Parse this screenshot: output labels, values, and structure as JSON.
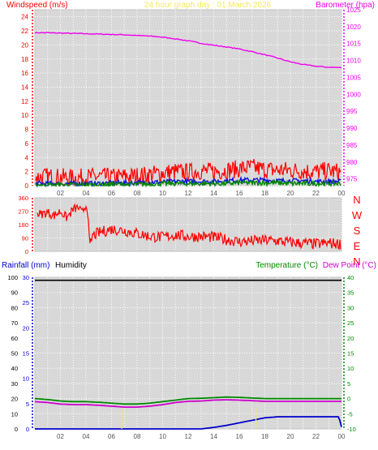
{
  "title": "24 hour graph day : 01 March 2026",
  "colors": {
    "title": "#f5e85a",
    "wind": "#ff0000",
    "wind_avg": "#1010dd",
    "wind_lull": "#008800",
    "barometer": "#ee00ee",
    "direction": "#ff0000",
    "rain": "#0000cc",
    "humidity": "#000000",
    "temperature": "#008800",
    "dewpoint": "#cc00cc",
    "rain_markers": "#f5e85a",
    "grid": "#ffffff",
    "plot_bg": "#d8d8d8"
  },
  "chart_data": [
    {
      "type": "line",
      "id": "wind_baro",
      "y_left_label": "Windspeed (m/s)",
      "y_right_label": "Barometer (hpa)",
      "x_ticks": [
        "02",
        "04",
        "06",
        "08",
        "10",
        "12",
        "14",
        "16",
        "18",
        "20",
        "22",
        "00"
      ],
      "y_left_ticks": [
        "24",
        "22",
        "20",
        "18",
        "16",
        "14",
        "12",
        "10",
        "8",
        "6",
        "4",
        "2",
        "0"
      ],
      "y_right_ticks": [
        "1025",
        "1020",
        "1015",
        "1010",
        "1005",
        "1000",
        "995",
        "990",
        "985",
        "980",
        "975"
      ],
      "ylim_left": [
        0,
        25
      ],
      "ylim_right": [
        973,
        1025
      ],
      "grid": true,
      "series": [
        {
          "axis": "right",
          "color_key": "barometer",
          "x": [
            0,
            1,
            2,
            3,
            4,
            5,
            6,
            7,
            8,
            9,
            10,
            11,
            12,
            13,
            14,
            15,
            16,
            17,
            18,
            19,
            20,
            21,
            22,
            23,
            24
          ],
          "values": [
            1018.2,
            1018.2,
            1018.1,
            1018.0,
            1017.9,
            1017.8,
            1017.7,
            1017.6,
            1017.4,
            1017.2,
            1016.9,
            1016.4,
            1015.8,
            1015.1,
            1014.5,
            1014.0,
            1013.4,
            1012.6,
            1011.7,
            1010.7,
            1009.6,
            1008.8,
            1008.3,
            1008.0,
            1007.9
          ]
        },
        {
          "axis": "left",
          "color_key": "wind",
          "kind": "noise",
          "x": [
            0,
            1,
            2,
            3,
            4,
            5,
            6,
            7,
            8,
            9,
            10,
            11,
            12,
            13,
            14,
            15,
            16,
            17,
            18,
            19,
            20,
            21,
            22,
            23,
            24
          ],
          "values": [
            1.2,
            1.3,
            1.2,
            1.1,
            1.2,
            1.3,
            1.2,
            1.3,
            1.4,
            1.6,
            1.8,
            2.0,
            1.9,
            2.1,
            2.0,
            2.2,
            2.4,
            2.6,
            2.3,
            2.2,
            2.2,
            2.1,
            2.0,
            2.1,
            1.9
          ],
          "amp": 1.3
        },
        {
          "axis": "left",
          "color_key": "wind_avg",
          "kind": "noise",
          "x": [
            0,
            1,
            2,
            3,
            4,
            5,
            6,
            7,
            8,
            9,
            10,
            11,
            12,
            13,
            14,
            15,
            16,
            17,
            18,
            19,
            20,
            21,
            22,
            23,
            24
          ],
          "values": [
            0.3,
            0.3,
            0.3,
            0.3,
            0.3,
            0.3,
            0.4,
            0.4,
            0.4,
            0.5,
            0.5,
            0.6,
            0.6,
            0.6,
            0.6,
            0.7,
            0.8,
            0.8,
            0.8,
            0.7,
            0.7,
            0.7,
            0.6,
            0.6,
            0.6
          ],
          "amp": 0.35
        },
        {
          "axis": "left",
          "color_key": "wind_lull",
          "kind": "noise",
          "x": [
            0,
            1,
            2,
            3,
            4,
            5,
            6,
            7,
            8,
            9,
            10,
            11,
            12,
            13,
            14,
            15,
            16,
            17,
            18,
            19,
            20,
            21,
            22,
            23,
            24
          ],
          "values": [
            0.1,
            0.1,
            0.1,
            0.1,
            0.1,
            0.1,
            0.2,
            0.2,
            0.2,
            0.2,
            0.3,
            0.3,
            0.3,
            0.3,
            0.3,
            0.3,
            0.4,
            0.4,
            0.4,
            0.4,
            0.3,
            0.3,
            0.3,
            0.3,
            0.3
          ],
          "amp": 0.35
        }
      ]
    },
    {
      "type": "line",
      "id": "direction",
      "y_left_ticks": [
        "360",
        "270",
        "180",
        "90",
        "0"
      ],
      "right_labels": [
        "N",
        "W",
        "S",
        "E",
        "N"
      ],
      "ylim_left": [
        0,
        360
      ],
      "grid": true,
      "series": [
        {
          "color_key": "direction",
          "kind": "noise",
          "x": [
            0,
            0.5,
            1,
            1.5,
            2,
            2.5,
            3,
            3.4,
            3.7,
            3.9,
            4.1,
            4.3,
            4.5,
            5,
            6,
            7,
            8,
            9,
            10,
            11,
            12,
            13,
            14,
            15,
            16,
            17,
            18,
            19,
            20,
            21,
            22,
            23,
            24
          ],
          "values": [
            255,
            250,
            262,
            240,
            270,
            225,
            282,
            295,
            255,
            300,
            310,
            20,
            105,
            125,
            150,
            140,
            120,
            100,
            95,
            110,
            100,
            100,
            95,
            80,
            65,
            70,
            75,
            70,
            60,
            55,
            50,
            55,
            50
          ],
          "amp": 38
        }
      ]
    },
    {
      "type": "line",
      "id": "rain_temp",
      "y_left_label": "Rainfall (mm)",
      "y_left2_label": "Humidity",
      "y_right_label": "Temperature (°C)",
      "y_right2_label": "Dew Point (°C)",
      "x_ticks": [
        "02",
        "04",
        "06",
        "08",
        "10",
        "12",
        "14",
        "16",
        "18",
        "20",
        "22",
        "00"
      ],
      "y_humidity_ticks": [
        "100",
        "90",
        "80",
        "70",
        "60",
        "50",
        "40",
        "30",
        "20",
        "10",
        "0"
      ],
      "y_rain_ticks": [
        "30",
        "25",
        "20",
        "15",
        "10",
        "5",
        "0"
      ],
      "y_right_ticks": [
        "40",
        "35",
        "30",
        "25",
        "20",
        "15",
        "10",
        "5",
        "0",
        "-5",
        "-10"
      ],
      "ylim_humidity": [
        0,
        100
      ],
      "ylim_rain": [
        0,
        30
      ],
      "ylim_right": [
        -10,
        40
      ],
      "grid": true,
      "series": [
        {
          "name": "Humidity",
          "axis": "humidity",
          "color_key": "humidity",
          "x": [
            0,
            24
          ],
          "values": [
            98,
            98
          ]
        },
        {
          "name": "Temperature",
          "axis": "right",
          "color_key": "temperature",
          "x": [
            0,
            1,
            2,
            3,
            4,
            5,
            6,
            7,
            8,
            9,
            10,
            11,
            12,
            13,
            14,
            15,
            16,
            17,
            18,
            19,
            20,
            21,
            22,
            23,
            24
          ],
          "values": [
            0,
            -0.3,
            -0.8,
            -1.0,
            -1.0,
            -1.2,
            -1.5,
            -1.8,
            -1.8,
            -1.5,
            -1.0,
            -0.5,
            0,
            0.1,
            0.3,
            0.5,
            0.4,
            0.2,
            0,
            0,
            0,
            0,
            0,
            0,
            0
          ]
        },
        {
          "name": "Dew Point",
          "axis": "right",
          "color_key": "dewpoint",
          "x": [
            0,
            1,
            2,
            3,
            4,
            5,
            6,
            7,
            8,
            9,
            10,
            11,
            12,
            13,
            14,
            15,
            16,
            17,
            18,
            19,
            20,
            21,
            22,
            23,
            24
          ],
          "values": [
            -1.0,
            -1.3,
            -1.8,
            -2.0,
            -2.0,
            -2.2,
            -2.5,
            -2.8,
            -2.8,
            -2.5,
            -2.0,
            -1.3,
            -0.9,
            -0.8,
            -0.5,
            -0.4,
            -0.5,
            -0.7,
            -0.9,
            -0.9,
            -0.9,
            -0.9,
            -0.9,
            -0.9,
            -0.9
          ]
        },
        {
          "name": "Rainfall",
          "axis": "rain",
          "color_key": "rain",
          "x": [
            0,
            1,
            2,
            3,
            4,
            5,
            6,
            7,
            8,
            9,
            10,
            11,
            12,
            13,
            14,
            15,
            16,
            17,
            18,
            19,
            20,
            21,
            22,
            23,
            23.8,
            24
          ],
          "values": [
            0,
            0,
            0,
            0,
            0,
            0,
            0,
            0,
            0,
            0,
            0,
            0,
            0,
            0,
            0.3,
            0.7,
            1.2,
            1.7,
            2.2,
            2.4,
            2.4,
            2.4,
            2.4,
            2.4,
            2.4,
            0.4
          ]
        },
        {
          "name": "Rain marker",
          "axis": "rain",
          "color_key": "rain_markers",
          "kind": "markers",
          "x": [
            6.8,
            17.3
          ],
          "values": [
            4,
            4
          ]
        }
      ]
    }
  ]
}
